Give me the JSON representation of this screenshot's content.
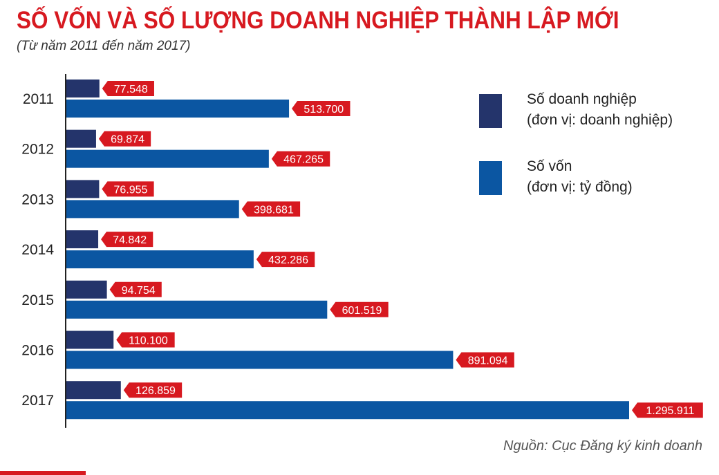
{
  "header": {
    "title": "SỐ VỐN VÀ SỐ LƯỢNG DOANH NGHIỆP THÀNH LẬP MỚI",
    "subtitle": "(Từ năm 2011 đến năm 2017)"
  },
  "legend": {
    "enterprises": {
      "label": "Số doanh nghiệp",
      "unit": "(đơn vị: doanh nghiệp)"
    },
    "capital": {
      "label": "Số vốn",
      "unit": "(đơn vị: tỷ đồng)"
    }
  },
  "source": "Nguồn: Cục Đăng ký kinh doanh",
  "colors": {
    "title": "#d71920",
    "enterprises_bar": "#24346b",
    "capital_bar": "#0b56a2",
    "value_tag": "#d71920"
  },
  "chart_data": {
    "type": "bar",
    "orientation": "horizontal",
    "categories": [
      "2011",
      "2012",
      "2013",
      "2014",
      "2015",
      "2016",
      "2017"
    ],
    "series": [
      {
        "name": "Số doanh nghiệp",
        "values": [
          77548,
          69874,
          76955,
          74842,
          94754,
          110100,
          126859
        ],
        "labels": [
          "77.548",
          "69.874",
          "76.955",
          "74.842",
          "94.754",
          "110.100",
          "126.859"
        ]
      },
      {
        "name": "Số vốn",
        "values": [
          513700,
          467265,
          398681,
          432286,
          601519,
          891094,
          1295911
        ],
        "labels": [
          "513.700",
          "467.265",
          "398.681",
          "432.286",
          "601.519",
          "891.094",
          "1.295.911"
        ]
      }
    ],
    "xlim": [
      0,
      1295911
    ],
    "grid": false,
    "legend_position": "right"
  }
}
